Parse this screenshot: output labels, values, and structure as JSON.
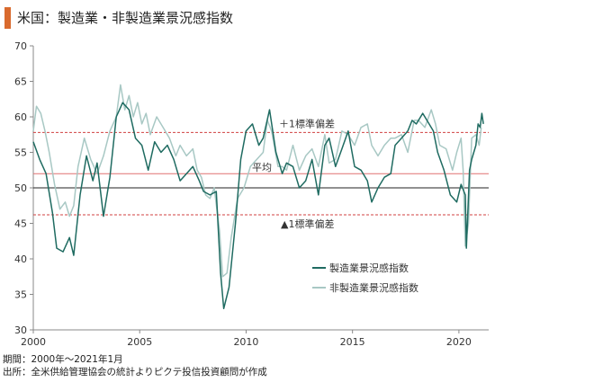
{
  "title": "米国：製造業・非製造業景況感指数",
  "notes": {
    "period": "期間：2000年～2021年1月",
    "source": "出所：全米供給管理協会の統計よりピクテ投信投資顧問が作成"
  },
  "chart_data": {
    "type": "line",
    "ylim": [
      30,
      70
    ],
    "xlim": [
      2000,
      2021.4
    ],
    "yticks": [
      "30",
      "35",
      "40",
      "45",
      "50",
      "55",
      "60",
      "65",
      "70"
    ],
    "xticks": [
      "2000",
      "2005",
      "2010",
      "2015",
      "2020"
    ],
    "reference_lines": [
      {
        "label": "＋1標準偏差",
        "value": 57.8,
        "color": "#d04040",
        "style": "dashed"
      },
      {
        "label": "平均",
        "value": 52.0,
        "color": "#e07070",
        "style": "solid"
      },
      {
        "label": "",
        "value": 50.0,
        "color": "#222222",
        "style": "solid"
      },
      {
        "label": "▲1標準偏差",
        "value": 46.2,
        "color": "#d04040",
        "style": "dashed"
      }
    ],
    "legend_position": "right",
    "series": [
      {
        "name": "製造業景況感指数",
        "color": "#1f6b61",
        "points": [
          [
            2000.0,
            56.5
          ],
          [
            2000.3,
            54.0
          ],
          [
            2000.6,
            52.0
          ],
          [
            2000.9,
            46.5
          ],
          [
            2001.1,
            41.5
          ],
          [
            2001.4,
            41.0
          ],
          [
            2001.7,
            43.0
          ],
          [
            2001.9,
            40.5
          ],
          [
            2002.2,
            49.0
          ],
          [
            2002.5,
            54.5
          ],
          [
            2002.8,
            51.0
          ],
          [
            2003.0,
            53.5
          ],
          [
            2003.3,
            46.0
          ],
          [
            2003.6,
            51.5
          ],
          [
            2003.9,
            60.0
          ],
          [
            2004.2,
            62.0
          ],
          [
            2004.5,
            61.0
          ],
          [
            2004.8,
            57.0
          ],
          [
            2005.1,
            56.0
          ],
          [
            2005.4,
            52.5
          ],
          [
            2005.7,
            56.5
          ],
          [
            2006.0,
            55.0
          ],
          [
            2006.3,
            56.0
          ],
          [
            2006.6,
            54.0
          ],
          [
            2006.9,
            51.0
          ],
          [
            2007.2,
            52.0
          ],
          [
            2007.5,
            53.0
          ],
          [
            2007.8,
            51.0
          ],
          [
            2008.0,
            49.5
          ],
          [
            2008.3,
            49.0
          ],
          [
            2008.6,
            49.5
          ],
          [
            2008.8,
            38.0
          ],
          [
            2008.95,
            33.0
          ],
          [
            2009.2,
            36.0
          ],
          [
            2009.5,
            45.0
          ],
          [
            2009.75,
            54.0
          ],
          [
            2010.0,
            58.0
          ],
          [
            2010.3,
            59.0
          ],
          [
            2010.6,
            56.0
          ],
          [
            2010.8,
            57.0
          ],
          [
            2011.1,
            61.0
          ],
          [
            2011.4,
            55.0
          ],
          [
            2011.7,
            52.0
          ],
          [
            2011.9,
            53.5
          ],
          [
            2012.2,
            53.0
          ],
          [
            2012.5,
            50.0
          ],
          [
            2012.8,
            51.0
          ],
          [
            2013.1,
            54.0
          ],
          [
            2013.4,
            49.0
          ],
          [
            2013.7,
            56.0
          ],
          [
            2013.9,
            57.0
          ],
          [
            2014.2,
            53.0
          ],
          [
            2014.5,
            55.5
          ],
          [
            2014.8,
            58.0
          ],
          [
            2015.1,
            53.0
          ],
          [
            2015.4,
            52.5
          ],
          [
            2015.7,
            51.0
          ],
          [
            2015.9,
            48.0
          ],
          [
            2016.2,
            50.0
          ],
          [
            2016.5,
            51.5
          ],
          [
            2016.8,
            52.0
          ],
          [
            2017.0,
            56.0
          ],
          [
            2017.3,
            57.0
          ],
          [
            2017.6,
            58.0
          ],
          [
            2017.8,
            59.5
          ],
          [
            2018.0,
            59.0
          ],
          [
            2018.3,
            60.5
          ],
          [
            2018.6,
            59.0
          ],
          [
            2018.8,
            58.0
          ],
          [
            2019.0,
            55.0
          ],
          [
            2019.3,
            52.5
          ],
          [
            2019.6,
            49.0
          ],
          [
            2019.9,
            48.0
          ],
          [
            2020.1,
            50.5
          ],
          [
            2020.3,
            49.0
          ],
          [
            2020.35,
            41.5
          ],
          [
            2020.5,
            52.5
          ],
          [
            2020.6,
            54.0
          ],
          [
            2020.8,
            56.0
          ],
          [
            2020.9,
            59.0
          ],
          [
            2021.0,
            58.5
          ],
          [
            2021.08,
            60.5
          ],
          [
            2021.15,
            59.0
          ]
        ]
      },
      {
        "name": "非製造業景況感指数",
        "color": "#a8c8c4",
        "points": [
          [
            2000.0,
            58.0
          ],
          [
            2000.15,
            61.5
          ],
          [
            2000.35,
            60.5
          ],
          [
            2000.55,
            58.0
          ],
          [
            2000.75,
            55.0
          ],
          [
            2001.0,
            50.5
          ],
          [
            2001.25,
            47.0
          ],
          [
            2001.5,
            48.0
          ],
          [
            2001.7,
            46.0
          ],
          [
            2001.9,
            47.5
          ],
          [
            2002.1,
            53.0
          ],
          [
            2002.4,
            57.0
          ],
          [
            2002.7,
            54.0
          ],
          [
            2003.0,
            52.0
          ],
          [
            2003.3,
            54.5
          ],
          [
            2003.6,
            58.0
          ],
          [
            2003.9,
            60.0
          ],
          [
            2004.1,
            64.5
          ],
          [
            2004.3,
            61.0
          ],
          [
            2004.5,
            63.0
          ],
          [
            2004.7,
            60.0
          ],
          [
            2004.9,
            62.0
          ],
          [
            2005.1,
            59.0
          ],
          [
            2005.3,
            60.5
          ],
          [
            2005.5,
            57.5
          ],
          [
            2005.8,
            60.0
          ],
          [
            2006.1,
            58.5
          ],
          [
            2006.4,
            57.0
          ],
          [
            2006.7,
            54.5
          ],
          [
            2006.9,
            56.0
          ],
          [
            2007.2,
            54.5
          ],
          [
            2007.5,
            55.5
          ],
          [
            2007.7,
            52.5
          ],
          [
            2007.9,
            51.5
          ],
          [
            2008.1,
            49.0
          ],
          [
            2008.3,
            48.5
          ],
          [
            2008.5,
            50.0
          ],
          [
            2008.75,
            44.0
          ],
          [
            2008.9,
            37.5
          ],
          [
            2009.1,
            38.0
          ],
          [
            2009.3,
            43.0
          ],
          [
            2009.6,
            48.5
          ],
          [
            2009.9,
            50.0
          ],
          [
            2010.2,
            53.0
          ],
          [
            2010.5,
            54.0
          ],
          [
            2010.8,
            55.0
          ],
          [
            2011.0,
            59.5
          ],
          [
            2011.2,
            58.0
          ],
          [
            2011.5,
            53.0
          ],
          [
            2011.7,
            53.0
          ],
          [
            2011.9,
            52.5
          ],
          [
            2012.2,
            56.0
          ],
          [
            2012.5,
            52.5
          ],
          [
            2012.8,
            54.5
          ],
          [
            2013.1,
            55.5
          ],
          [
            2013.4,
            53.0
          ],
          [
            2013.7,
            57.5
          ],
          [
            2013.9,
            53.5
          ],
          [
            2014.2,
            54.0
          ],
          [
            2014.5,
            58.0
          ],
          [
            2014.8,
            57.5
          ],
          [
            2015.1,
            56.0
          ],
          [
            2015.4,
            58.5
          ],
          [
            2015.7,
            59.0
          ],
          [
            2015.9,
            56.0
          ],
          [
            2016.2,
            54.5
          ],
          [
            2016.5,
            56.0
          ],
          [
            2016.8,
            57.0
          ],
          [
            2017.0,
            57.0
          ],
          [
            2017.3,
            57.5
          ],
          [
            2017.6,
            55.0
          ],
          [
            2017.9,
            59.5
          ],
          [
            2018.1,
            59.5
          ],
          [
            2018.4,
            58.5
          ],
          [
            2018.7,
            61.0
          ],
          [
            2018.9,
            59.0
          ],
          [
            2019.1,
            56.0
          ],
          [
            2019.4,
            55.5
          ],
          [
            2019.7,
            52.5
          ],
          [
            2019.9,
            55.0
          ],
          [
            2020.1,
            57.0
          ],
          [
            2020.2,
            52.5
          ],
          [
            2020.3,
            41.8
          ],
          [
            2020.45,
            45.0
          ],
          [
            2020.6,
            57.0
          ],
          [
            2020.8,
            57.5
          ],
          [
            2020.95,
            56.0
          ],
          [
            2021.05,
            58.5
          ]
        ]
      }
    ]
  }
}
